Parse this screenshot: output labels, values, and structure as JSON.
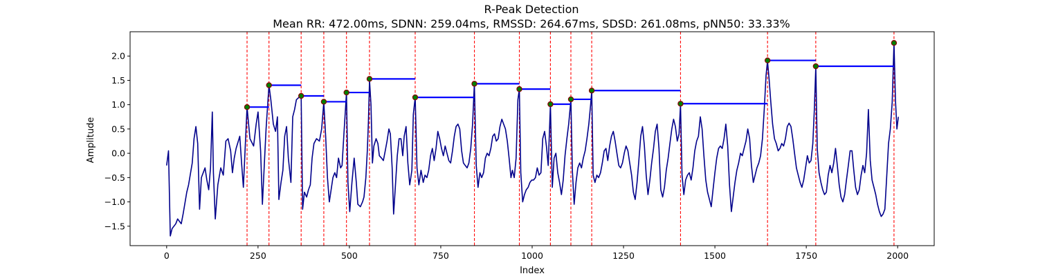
{
  "chart_data": {
    "type": "line",
    "title": "R-Peak Detection",
    "subtitle": "Mean RR: 472.00ms, SDNN: 259.04ms, RMSSD: 264.67ms, SDSD: 261.08ms, pNN50: 33.33%",
    "xlabel": "Index",
    "ylabel": "Amplitude",
    "xlim": [
      -100,
      2100
    ],
    "ylim": [
      -1.9,
      2.5
    ],
    "xticks": [
      0,
      250,
      500,
      750,
      1000,
      1250,
      1500,
      1750,
      2000
    ],
    "xtick_labels": [
      "0",
      "250",
      "500",
      "750",
      "1000",
      "1250",
      "1500",
      "1750",
      "2000"
    ],
    "yticks": [
      -1.5,
      -1.0,
      -0.5,
      0.0,
      0.5,
      1.0,
      1.5,
      2.0
    ],
    "ytick_labels": [
      "−1.5",
      "−1.0",
      "−0.5",
      "0.0",
      "0.5",
      "1.0",
      "1.5",
      "2.0"
    ],
    "grid": false,
    "colors": {
      "signal": "#00008b",
      "peak_line": "#ff0000",
      "rr_segment": "#0000ff",
      "peak_fill": "#008000",
      "peak_edge": "#8b0000"
    },
    "signal_points": [
      [
        0,
        -0.25
      ],
      [
        5,
        0.05
      ],
      [
        10,
        -1.7
      ],
      [
        15,
        -1.55
      ],
      [
        25,
        -1.45
      ],
      [
        30,
        -1.35
      ],
      [
        40,
        -1.45
      ],
      [
        45,
        -1.25
      ],
      [
        55,
        -0.8
      ],
      [
        60,
        -0.65
      ],
      [
        70,
        -0.2
      ],
      [
        75,
        0.3
      ],
      [
        80,
        0.55
      ],
      [
        85,
        0.2
      ],
      [
        90,
        -1.15
      ],
      [
        95,
        -0.5
      ],
      [
        105,
        -0.3
      ],
      [
        110,
        -0.55
      ],
      [
        115,
        -0.75
      ],
      [
        120,
        -0.3
      ],
      [
        125,
        0.85
      ],
      [
        128,
        -0.4
      ],
      [
        133,
        -1.35
      ],
      [
        140,
        -0.65
      ],
      [
        148,
        -0.3
      ],
      [
        155,
        -0.45
      ],
      [
        162,
        0.25
      ],
      [
        168,
        0.3
      ],
      [
        175,
        0.05
      ],
      [
        180,
        -0.4
      ],
      [
        185,
        -0.1
      ],
      [
        190,
        0.1
      ],
      [
        200,
        0.35
      ],
      [
        205,
        -0.2
      ],
      [
        210,
        -0.7
      ],
      [
        220,
        0.95
      ],
      [
        228,
        0.3
      ],
      [
        238,
        0.15
      ],
      [
        245,
        0.6
      ],
      [
        250,
        0.85
      ],
      [
        257,
        0.05
      ],
      [
        262,
        -1.05
      ],
      [
        268,
        -0.1
      ],
      [
        272,
        0.5
      ],
      [
        280,
        1.4
      ],
      [
        285,
        1.1
      ],
      [
        292,
        0.6
      ],
      [
        298,
        0.45
      ],
      [
        303,
        0.75
      ],
      [
        307,
        -0.95
      ],
      [
        313,
        -0.6
      ],
      [
        318,
        -0.35
      ],
      [
        323,
        0.35
      ],
      [
        328,
        0.55
      ],
      [
        333,
        -0.1
      ],
      [
        340,
        -0.6
      ],
      [
        345,
        0.75
      ],
      [
        350,
        0.9
      ],
      [
        355,
        1.1
      ],
      [
        362,
        1.15
      ],
      [
        368,
        1.17
      ],
      [
        372,
        -1.15
      ],
      [
        377,
        -0.8
      ],
      [
        383,
        -0.9
      ],
      [
        388,
        -0.75
      ],
      [
        393,
        -0.65
      ],
      [
        398,
        -0.1
      ],
      [
        403,
        0.2
      ],
      [
        410,
        0.3
      ],
      [
        418,
        0.25
      ],
      [
        424,
        0.5
      ],
      [
        430,
        1.05
      ],
      [
        435,
        0.35
      ],
      [
        440,
        -0.5
      ],
      [
        445,
        -1.0
      ],
      [
        450,
        -0.75
      ],
      [
        455,
        -0.5
      ],
      [
        460,
        -0.4
      ],
      [
        465,
        -0.5
      ],
      [
        470,
        -0.1
      ],
      [
        476,
        -0.3
      ],
      [
        480,
        -0.25
      ],
      [
        485,
        0.4
      ],
      [
        492,
        1.25
      ],
      [
        496,
        -0.6
      ],
      [
        501,
        -1.2
      ],
      [
        507,
        -0.6
      ],
      [
        513,
        -0.1
      ],
      [
        519,
        -0.6
      ],
      [
        523,
        -1.05
      ],
      [
        530,
        -1.1
      ],
      [
        536,
        -1.0
      ],
      [
        540,
        -0.9
      ],
      [
        545,
        -0.5
      ],
      [
        549,
        0.05
      ],
      [
        552,
        0.65
      ],
      [
        555,
        1.5
      ],
      [
        559,
        1.0
      ],
      [
        563,
        -0.2
      ],
      [
        567,
        0.15
      ],
      [
        573,
        0.3
      ],
      [
        578,
        0.2
      ],
      [
        582,
        -0.05
      ],
      [
        588,
        -0.1
      ],
      [
        593,
        -0.15
      ],
      [
        598,
        0.05
      ],
      [
        603,
        0.25
      ],
      [
        608,
        0.5
      ],
      [
        612,
        0.4
      ],
      [
        617,
        -0.3
      ],
      [
        621,
        -1.25
      ],
      [
        626,
        -0.65
      ],
      [
        631,
        -0.05
      ],
      [
        636,
        0.3
      ],
      [
        641,
        0.3
      ],
      [
        646,
        -0.05
      ],
      [
        650,
        0.35
      ],
      [
        655,
        0.55
      ],
      [
        660,
        -0.2
      ],
      [
        665,
        -0.65
      ],
      [
        671,
        -0.35
      ],
      [
        675,
        0.8
      ],
      [
        680,
        1.15
      ],
      [
        685,
        -0.3
      ],
      [
        690,
        -0.65
      ],
      [
        696,
        -0.35
      ],
      [
        702,
        -0.6
      ],
      [
        707,
        -0.45
      ],
      [
        712,
        -0.5
      ],
      [
        717,
        -0.35
      ],
      [
        722,
        -0.05
      ],
      [
        727,
        0.1
      ],
      [
        732,
        -0.15
      ],
      [
        737,
        0.1
      ],
      [
        742,
        0.45
      ],
      [
        747,
        0.3
      ],
      [
        752,
        0.1
      ],
      [
        757,
        -0.05
      ],
      [
        762,
        0.15
      ],
      [
        767,
        0.0
      ],
      [
        772,
        -0.15
      ],
      [
        777,
        -0.2
      ],
      [
        782,
        0.05
      ],
      [
        787,
        0.35
      ],
      [
        792,
        0.55
      ],
      [
        797,
        0.6
      ],
      [
        802,
        0.5
      ],
      [
        807,
        0.05
      ],
      [
        812,
        -0.2
      ],
      [
        817,
        -0.25
      ],
      [
        822,
        -0.3
      ],
      [
        827,
        -0.2
      ],
      [
        832,
        0.1
      ],
      [
        837,
        0.6
      ],
      [
        842,
        1.43
      ],
      [
        847,
        -0.25
      ],
      [
        852,
        -0.7
      ],
      [
        857,
        -0.4
      ],
      [
        862,
        -0.5
      ],
      [
        867,
        -0.4
      ],
      [
        872,
        -0.1
      ],
      [
        877,
        0.0
      ],
      [
        882,
        -0.05
      ],
      [
        887,
        0.1
      ],
      [
        892,
        0.35
      ],
      [
        897,
        0.4
      ],
      [
        902,
        0.25
      ],
      [
        907,
        0.3
      ],
      [
        912,
        0.55
      ],
      [
        917,
        0.7
      ],
      [
        922,
        0.6
      ],
      [
        927,
        0.5
      ],
      [
        932,
        0.25
      ],
      [
        937,
        -0.1
      ],
      [
        942,
        -0.5
      ],
      [
        946,
        -0.35
      ],
      [
        951,
        -0.5
      ],
      [
        956,
        -0.1
      ],
      [
        961,
        1.1
      ],
      [
        965,
        1.32
      ],
      [
        969,
        -0.4
      ],
      [
        974,
        -1.0
      ],
      [
        979,
        -0.85
      ],
      [
        984,
        -0.75
      ],
      [
        989,
        -0.7
      ],
      [
        994,
        -0.6
      ],
      [
        999,
        -0.55
      ],
      [
        1004,
        -0.55
      ],
      [
        1009,
        -0.5
      ],
      [
        1014,
        -0.3
      ],
      [
        1019,
        -0.45
      ],
      [
        1024,
        -0.4
      ],
      [
        1029,
        0.3
      ],
      [
        1034,
        0.45
      ],
      [
        1039,
        0.15
      ],
      [
        1044,
        -0.25
      ],
      [
        1050,
        1.0
      ],
      [
        1055,
        -0.7
      ],
      [
        1060,
        -0.1
      ],
      [
        1065,
        0.0
      ],
      [
        1070,
        -0.4
      ],
      [
        1075,
        -0.6
      ],
      [
        1080,
        -0.85
      ],
      [
        1085,
        -0.55
      ],
      [
        1090,
        -0.05
      ],
      [
        1095,
        0.3
      ],
      [
        1100,
        0.6
      ],
      [
        1106,
        1.1
      ],
      [
        1110,
        -0.35
      ],
      [
        1115,
        -1.05
      ],
      [
        1120,
        -0.6
      ],
      [
        1125,
        -0.3
      ],
      [
        1130,
        -0.2
      ],
      [
        1135,
        -0.3
      ],
      [
        1140,
        -0.1
      ],
      [
        1145,
        0.05
      ],
      [
        1150,
        0.3
      ],
      [
        1155,
        0.6
      ],
      [
        1160,
        1.0
      ],
      [
        1163,
        1.28
      ],
      [
        1167,
        -0.45
      ],
      [
        1172,
        -0.6
      ],
      [
        1177,
        -0.45
      ],
      [
        1182,
        -0.5
      ],
      [
        1187,
        -0.4
      ],
      [
        1192,
        -0.2
      ],
      [
        1197,
        0.05
      ],
      [
        1202,
        0.1
      ],
      [
        1207,
        -0.15
      ],
      [
        1212,
        0.15
      ],
      [
        1217,
        0.35
      ],
      [
        1222,
        0.45
      ],
      [
        1227,
        0.25
      ],
      [
        1232,
        0.0
      ],
      [
        1237,
        -0.25
      ],
      [
        1242,
        -0.3
      ],
      [
        1247,
        -0.2
      ],
      [
        1252,
        0.0
      ],
      [
        1257,
        0.15
      ],
      [
        1262,
        0.05
      ],
      [
        1267,
        -0.2
      ],
      [
        1272,
        -0.45
      ],
      [
        1277,
        -0.8
      ],
      [
        1282,
        -0.95
      ],
      [
        1287,
        -0.6
      ],
      [
        1292,
        -0.15
      ],
      [
        1297,
        0.35
      ],
      [
        1302,
        0.55
      ],
      [
        1307,
        0.15
      ],
      [
        1312,
        -0.45
      ],
      [
        1317,
        -0.85
      ],
      [
        1322,
        -0.55
      ],
      [
        1327,
        -0.2
      ],
      [
        1332,
        0.1
      ],
      [
        1337,
        0.45
      ],
      [
        1342,
        0.6
      ],
      [
        1347,
        0.1
      ],
      [
        1352,
        -0.75
      ],
      [
        1357,
        -0.9
      ],
      [
        1362,
        -0.7
      ],
      [
        1367,
        -0.35
      ],
      [
        1372,
        -0.1
      ],
      [
        1377,
        0.2
      ],
      [
        1382,
        0.5
      ],
      [
        1387,
        0.7
      ],
      [
        1392,
        0.55
      ],
      [
        1397,
        0.25
      ],
      [
        1402,
        0.4
      ],
      [
        1406,
        1.0
      ],
      [
        1410,
        -0.45
      ],
      [
        1415,
        -0.85
      ],
      [
        1420,
        -0.55
      ],
      [
        1425,
        -0.45
      ],
      [
        1430,
        -0.4
      ],
      [
        1435,
        -0.55
      ],
      [
        1440,
        -0.3
      ],
      [
        1445,
        0.05
      ],
      [
        1450,
        0.25
      ],
      [
        1455,
        0.35
      ],
      [
        1460,
        0.75
      ],
      [
        1465,
        0.5
      ],
      [
        1470,
        -0.05
      ],
      [
        1475,
        -0.55
      ],
      [
        1480,
        -0.8
      ],
      [
        1485,
        -0.95
      ],
      [
        1490,
        -1.1
      ],
      [
        1495,
        -0.75
      ],
      [
        1500,
        -0.4
      ],
      [
        1505,
        -0.1
      ],
      [
        1510,
        0.1
      ],
      [
        1515,
        0.15
      ],
      [
        1520,
        0.1
      ],
      [
        1525,
        0.3
      ],
      [
        1530,
        0.6
      ],
      [
        1535,
        0.15
      ],
      [
        1540,
        -0.65
      ],
      [
        1545,
        -1.2
      ],
      [
        1550,
        -0.9
      ],
      [
        1555,
        -0.6
      ],
      [
        1560,
        -0.35
      ],
      [
        1565,
        -0.2
      ],
      [
        1570,
        0.0
      ],
      [
        1575,
        -0.05
      ],
      [
        1580,
        0.1
      ],
      [
        1585,
        0.25
      ],
      [
        1590,
        0.5
      ],
      [
        1595,
        0.3
      ],
      [
        1600,
        -0.25
      ],
      [
        1605,
        -0.6
      ],
      [
        1610,
        -0.45
      ],
      [
        1615,
        -0.3
      ],
      [
        1620,
        -0.2
      ],
      [
        1625,
        -0.05
      ],
      [
        1630,
        0.3
      ],
      [
        1635,
        0.9
      ],
      [
        1640,
        1.6
      ],
      [
        1644,
        1.9
      ],
      [
        1648,
        1.55
      ],
      [
        1653,
        1.05
      ],
      [
        1658,
        0.6
      ],
      [
        1663,
        0.3
      ],
      [
        1668,
        0.2
      ],
      [
        1673,
        0.05
      ],
      [
        1678,
        0.1
      ],
      [
        1683,
        0.2
      ],
      [
        1688,
        0.15
      ],
      [
        1693,
        0.3
      ],
      [
        1698,
        0.55
      ],
      [
        1703,
        0.62
      ],
      [
        1708,
        0.55
      ],
      [
        1713,
        0.3
      ],
      [
        1718,
        0.0
      ],
      [
        1723,
        -0.3
      ],
      [
        1728,
        -0.45
      ],
      [
        1733,
        -0.6
      ],
      [
        1738,
        -0.7
      ],
      [
        1743,
        -0.55
      ],
      [
        1748,
        -0.3
      ],
      [
        1753,
        -0.05
      ],
      [
        1758,
        -0.2
      ],
      [
        1763,
        -0.15
      ],
      [
        1768,
        0.2
      ],
      [
        1772,
        0.9
      ],
      [
        1776,
        1.78
      ],
      [
        1780,
        0.1
      ],
      [
        1785,
        -0.4
      ],
      [
        1790,
        -0.6
      ],
      [
        1795,
        -0.75
      ],
      [
        1800,
        -0.85
      ],
      [
        1805,
        -0.8
      ],
      [
        1810,
        -0.45
      ],
      [
        1815,
        -0.25
      ],
      [
        1820,
        -0.4
      ],
      [
        1825,
        -0.2
      ],
      [
        1830,
        0.1
      ],
      [
        1835,
        -0.25
      ],
      [
        1840,
        -0.65
      ],
      [
        1845,
        -0.9
      ],
      [
        1850,
        -1.0
      ],
      [
        1855,
        -0.85
      ],
      [
        1860,
        -0.55
      ],
      [
        1865,
        -0.25
      ],
      [
        1870,
        0.05
      ],
      [
        1875,
        0.05
      ],
      [
        1880,
        -0.35
      ],
      [
        1885,
        -0.7
      ],
      [
        1890,
        -0.85
      ],
      [
        1895,
        -0.75
      ],
      [
        1900,
        -0.45
      ],
      [
        1905,
        -0.25
      ],
      [
        1910,
        -0.4
      ],
      [
        1915,
        0.0
      ],
      [
        1920,
        0.9
      ],
      [
        1925,
        -0.15
      ],
      [
        1930,
        -0.55
      ],
      [
        1935,
        -0.7
      ],
      [
        1940,
        -0.85
      ],
      [
        1945,
        -1.05
      ],
      [
        1950,
        -1.2
      ],
      [
        1955,
        -1.3
      ],
      [
        1960,
        -1.25
      ],
      [
        1965,
        -1.15
      ],
      [
        1970,
        -0.5
      ],
      [
        1975,
        0.2
      ],
      [
        1980,
        0.5
      ],
      [
        1985,
        1.05
      ],
      [
        1990,
        2.27
      ],
      [
        1994,
        1.1
      ],
      [
        1998,
        0.5
      ],
      [
        2002,
        0.75
      ]
    ],
    "peaks": [
      {
        "x": 220,
        "y": 0.95
      },
      {
        "x": 280,
        "y": 1.4
      },
      {
        "x": 368,
        "y": 1.18
      },
      {
        "x": 430,
        "y": 1.06
      },
      {
        "x": 492,
        "y": 1.25
      },
      {
        "x": 555,
        "y": 1.53
      },
      {
        "x": 680,
        "y": 1.15
      },
      {
        "x": 842,
        "y": 1.43
      },
      {
        "x": 965,
        "y": 1.32
      },
      {
        "x": 1050,
        "y": 1.01
      },
      {
        "x": 1106,
        "y": 1.11
      },
      {
        "x": 1163,
        "y": 1.29
      },
      {
        "x": 1406,
        "y": 1.02
      },
      {
        "x": 1644,
        "y": 1.91
      },
      {
        "x": 1776,
        "y": 1.79
      },
      {
        "x": 1990,
        "y": 2.27
      }
    ]
  }
}
